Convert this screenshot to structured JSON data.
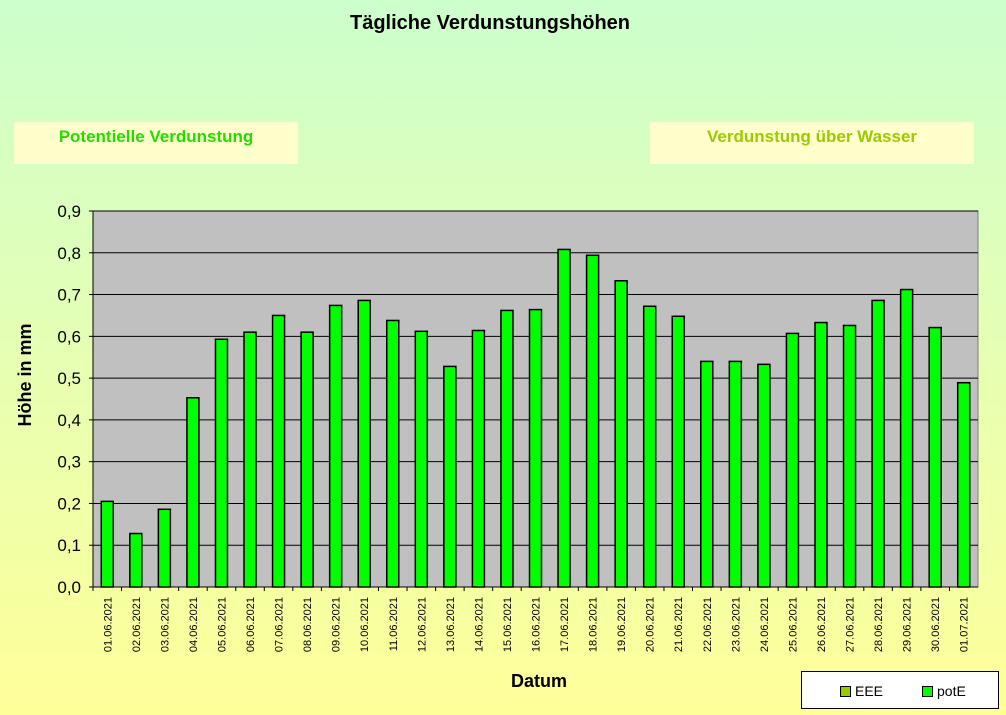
{
  "chart_data": {
    "type": "bar",
    "title": "Tägliche Verdunstungshöhen",
    "xlabel": "Datum",
    "ylabel": "Höhe in mm",
    "ylim": [
      0,
      0.9
    ],
    "yticks": [
      "0,0",
      "0,1",
      "0,2",
      "0,3",
      "0,4",
      "0,5",
      "0,6",
      "0,7",
      "0,8",
      "0,9"
    ],
    "grid": true,
    "legend_position": "bottom-right",
    "categories": [
      "01.06.2021",
      "02.06.2021",
      "03.06.2021",
      "04.06.2021",
      "05.06.2021",
      "06.06.2021",
      "07.06.2021",
      "08.06.2021",
      "09.06.2021",
      "10.06.2021",
      "11.06.2021",
      "12.06.2021",
      "13.06.2021",
      "14.06.2021",
      "15.06.2021",
      "16.06.2021",
      "17.06.2021",
      "18.06.2021",
      "19.06.2021",
      "20.06.2021",
      "21.06.2021",
      "22.06.2021",
      "23.06.2021",
      "24.06.2021",
      "25.06.2021",
      "26.06.2021",
      "27.06.2021",
      "28.06.2021",
      "29.06.2021",
      "30.06.2021",
      "01.07.2021"
    ],
    "series": [
      {
        "name": "potE",
        "color": "#00ff00",
        "values": [
          0.205,
          0.128,
          0.186,
          0.453,
          0.593,
          0.61,
          0.65,
          0.61,
          0.674,
          0.686,
          0.638,
          0.612,
          0.528,
          0.614,
          0.662,
          0.664,
          0.808,
          0.794,
          0.733,
          0.672,
          0.648,
          0.54,
          0.54,
          0.533,
          0.607,
          0.633,
          0.626,
          0.686,
          0.712,
          0.621,
          0.489
        ]
      }
    ]
  },
  "panels": {
    "left_label": "Potentielle Verdunstung",
    "left_color": "#22dd00",
    "right_label": "Verdunstung über Wasser",
    "right_color": "#99cc00"
  },
  "legend": {
    "items": [
      {
        "label": "EEE",
        "color": "#99cc00"
      },
      {
        "label": "potE",
        "color": "#00ff00"
      }
    ]
  },
  "colors": {
    "plot_background": "#c0c0c0",
    "bar_fill": "#00ff00"
  }
}
